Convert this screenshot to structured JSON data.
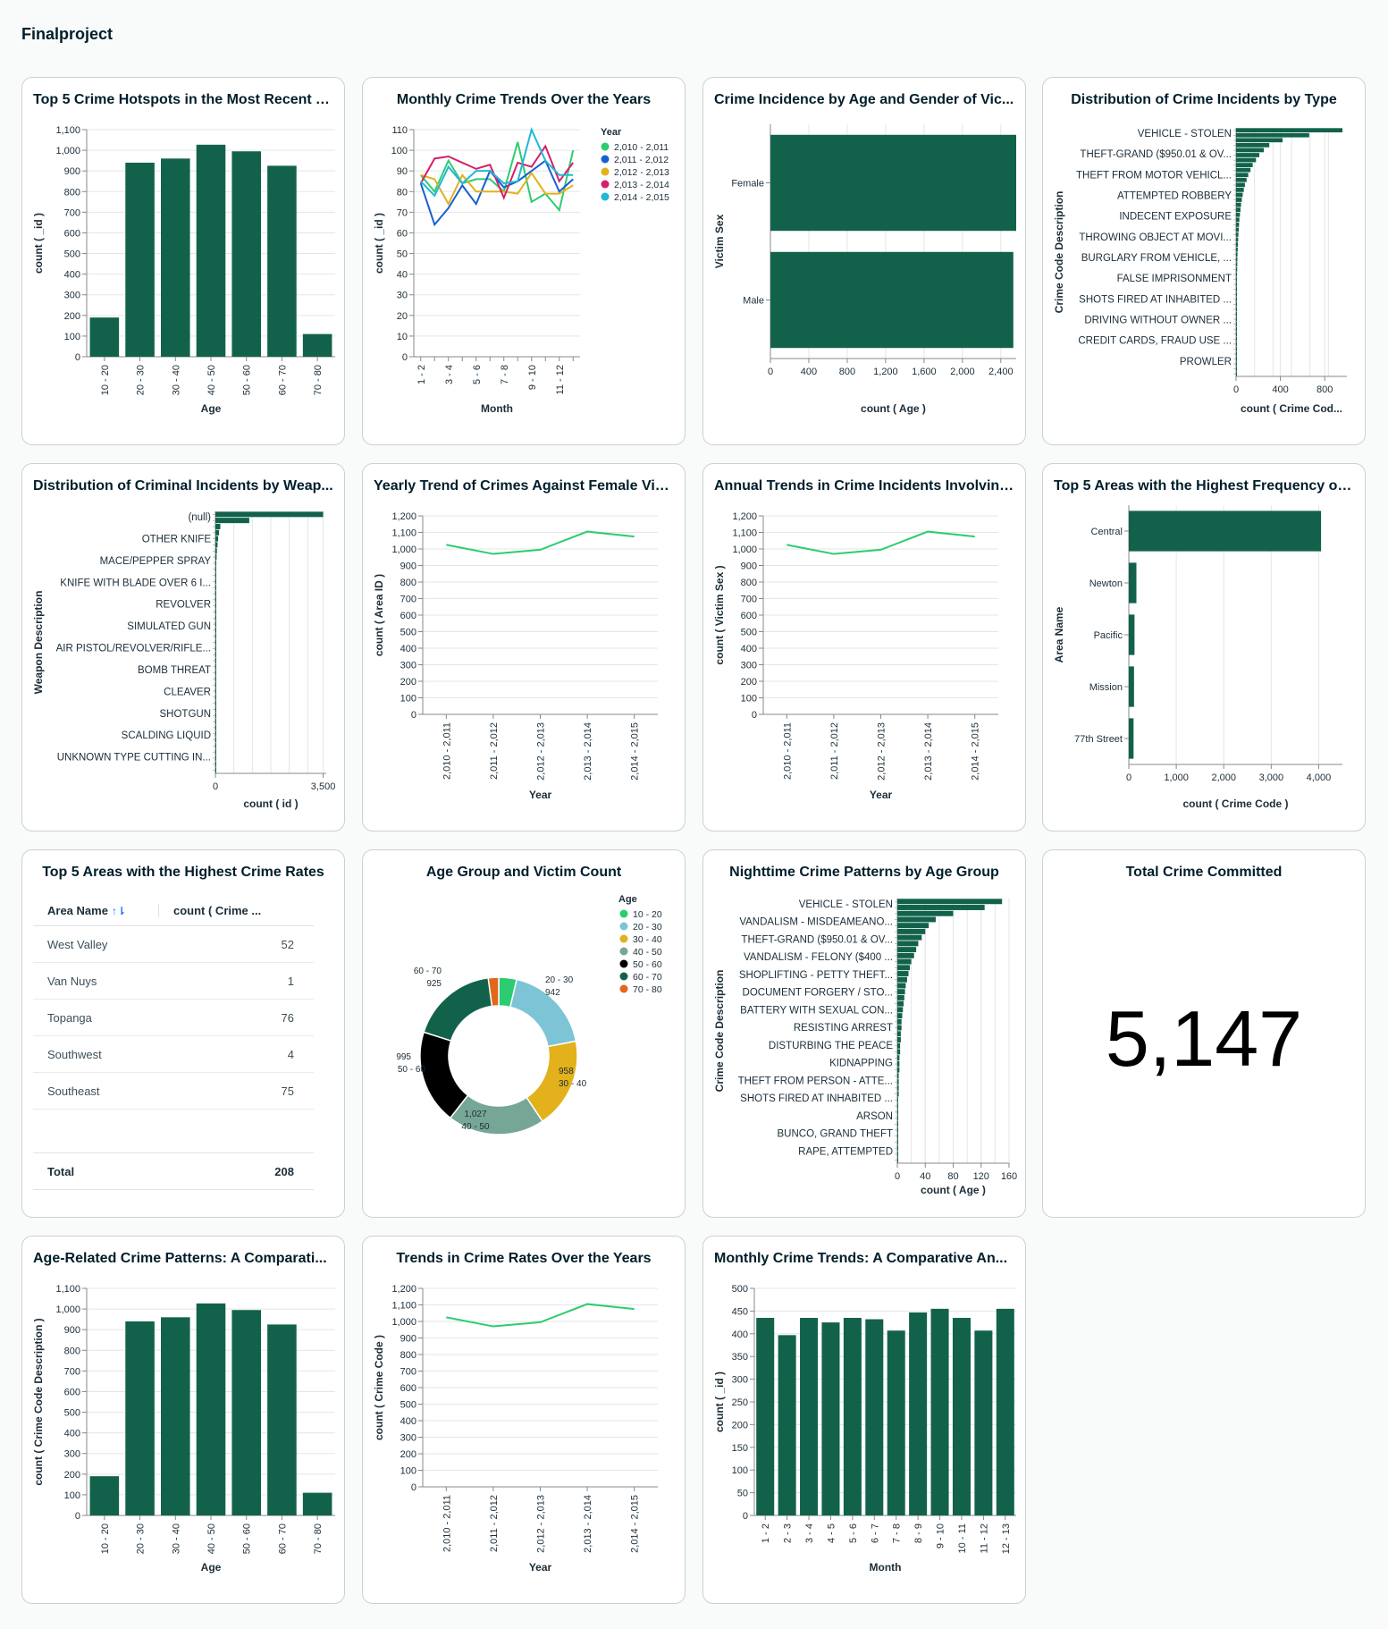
{
  "dashboard_title": "Finalproject",
  "colors": {
    "bar": "#12624b",
    "line": "#2ecc71",
    "grid": "#e3e6e8"
  },
  "charts": {
    "c1": {
      "title": "Top 5 Crime Hotspots in the Most Recent Y...",
      "type": "bar",
      "xlabel": "Age",
      "ylabel": "count ( _id )",
      "categories": [
        "10 - 20",
        "20 - 30",
        "30 - 40",
        "40 - 50",
        "50 - 60",
        "60 - 70",
        "70 - 80"
      ],
      "values": [
        190,
        940,
        960,
        1027,
        995,
        925,
        110
      ],
      "ylim": [
        0,
        1100
      ],
      "yticks": [
        0,
        100,
        200,
        300,
        400,
        500,
        600,
        700,
        800,
        900,
        1000,
        1100
      ],
      "ytick_labels": [
        "0",
        "100",
        "200",
        "300",
        "400",
        "500",
        "600",
        "700",
        "800",
        "900",
        "1,000",
        "1,100"
      ]
    },
    "c2": {
      "title": "Monthly Crime Trends Over the Years",
      "type": "line",
      "xlabel": "Month",
      "ylabel": "count ( _id )",
      "categories": [
        "1 - 2",
        "2 - 3",
        "3 - 4",
        "4 - 5",
        "5 - 6",
        "6 - 7",
        "7 - 8",
        "8 - 9",
        "9 - 10",
        "10 - 11",
        "11 - 12",
        "12 - 13"
      ],
      "xtick_labels": [
        "1 - 2",
        "",
        "3 - 4",
        "",
        "5 - 6",
        "",
        "7 - 8",
        "",
        "9 - 10",
        "",
        "11 - 12",
        ""
      ],
      "ylim": [
        0,
        110
      ],
      "yticks": [
        0,
        10,
        20,
        30,
        40,
        50,
        60,
        70,
        80,
        90,
        100,
        110
      ],
      "ytick_labels": [
        "0",
        "10",
        "20",
        "30",
        "40",
        "50",
        "60",
        "70",
        "80",
        "90",
        "100",
        "110"
      ],
      "legend_title": "Year",
      "series": [
        {
          "name": "2,010 - 2,011",
          "color": "#2ecc71",
          "values": [
            88,
            80,
            95,
            84,
            86,
            86,
            80,
            104,
            75,
            79,
            71,
            100
          ]
        },
        {
          "name": "2,011 - 2,012",
          "color": "#1a5fd0",
          "values": [
            84,
            64,
            72,
            83,
            74,
            90,
            82,
            85,
            90,
            95,
            80,
            86
          ]
        },
        {
          "name": "2,012 - 2,013",
          "color": "#e2b11b",
          "values": [
            88,
            86,
            74,
            88,
            80,
            80,
            80,
            79,
            89,
            79,
            79,
            83
          ]
        },
        {
          "name": "2,013 - 2,014",
          "color": "#d61f69",
          "values": [
            84,
            96,
            97,
            94,
            91,
            93,
            77,
            94,
            92,
            102,
            85,
            94
          ]
        },
        {
          "name": "2,014 - 2,015",
          "color": "#22b8d6",
          "values": [
            85,
            78,
            92,
            84,
            90,
            90,
            84,
            85,
            110,
            95,
            88,
            88
          ]
        }
      ]
    },
    "c3": {
      "title": "Crime Incidence by Age and Gender of Vic...",
      "type": "hbar",
      "xlabel": "count ( Age )",
      "ylabel": "Victim Sex",
      "categories": [
        "Female",
        "Male"
      ],
      "values": [
        2560,
        2530
      ],
      "xlim": [
        0,
        2560
      ],
      "xticks": [
        0,
        400,
        800,
        1200,
        1600,
        2000,
        2400
      ],
      "xtick_labels": [
        "0",
        "400",
        "800",
        "1,200",
        "1,600",
        "2,000",
        "2,400"
      ]
    },
    "c4": {
      "title": "Distribution of Crime Incidents by Type",
      "type": "hbar_dense",
      "xlabel": "count ( Crime Cod...",
      "ylabel": "Crime Code Description",
      "labels": [
        "VEHICLE - STOLEN",
        "THEFT-GRAND ($950.01 & OV...",
        "THEFT FROM MOTOR VEHICL...",
        "ATTEMPTED ROBBERY",
        "INDECENT EXPOSURE",
        "THROWING OBJECT AT MOVI...",
        "BURGLARY FROM VEHICLE, ...",
        "FALSE IMPRISONMENT",
        "SHOTS FIRED AT INHABITED ...",
        "DRIVING WITHOUT OWNER ...",
        "CREDIT CARDS, FRAUD USE ...",
        "PROWLER"
      ],
      "values": [
        960,
        660,
        420,
        300,
        250,
        210,
        180,
        150,
        130,
        110,
        95,
        80,
        70,
        60,
        52,
        45,
        40,
        35,
        30,
        27,
        24,
        21,
        19,
        17,
        15,
        13,
        12,
        11,
        10,
        9,
        8,
        7,
        7,
        6,
        6,
        5,
        5,
        4,
        4,
        3,
        3,
        3,
        2,
        2,
        2,
        1,
        1,
        1,
        1,
        1
      ],
      "xlim": [
        0,
        1000
      ],
      "xticks": [
        0,
        400,
        800
      ],
      "xtick_labels": [
        "0",
        "400",
        "800"
      ]
    },
    "c5": {
      "title": "Distribution of Criminal Incidents by Weap...",
      "type": "hbar_dense",
      "xlabel": "count (   id )",
      "ylabel": "Weapon Description",
      "labels": [
        "(null)",
        "OTHER KNIFE",
        "MACE/PEPPER SPRAY",
        "KNIFE WITH BLADE OVER 6 I...",
        "REVOLVER",
        "SIMULATED GUN",
        "AIR PISTOL/REVOLVER/RIFLE...",
        "BOMB THREAT",
        "CLEAVER",
        "SHOTGUN",
        "SCALDING LIQUID",
        "UNKNOWN TYPE CUTTING IN..."
      ],
      "values": [
        3500,
        1100,
        160,
        120,
        90,
        70,
        50,
        40,
        30,
        25,
        20,
        16,
        13,
        11,
        9,
        8,
        7,
        6,
        5,
        5,
        4,
        4,
        3,
        3,
        3,
        2,
        2,
        2,
        2,
        1,
        1,
        1,
        1,
        1,
        1,
        1,
        1,
        1,
        1,
        1,
        1,
        1,
        1
      ],
      "xlim": [
        0,
        3600
      ],
      "xticks": [
        0,
        3500
      ],
      "xtick_labels": [
        "0",
        "3,500"
      ]
    },
    "c6": {
      "title": "Yearly Trend of Crimes Against Female Vic...",
      "type": "line",
      "xlabel": "Year",
      "ylabel": "count ( Area ID )",
      "categories": [
        "2,010 - 2,011",
        "2,011 - 2,012",
        "2,012 - 2,013",
        "2,013 - 2,014",
        "2,014 - 2,015"
      ],
      "xtick_labels": [
        "2,010 - 2,011",
        "2,011 - 2,012",
        "2,012 - 2,013",
        "2,013 - 2,014",
        "2,014 - 2,015"
      ],
      "ylim": [
        0,
        1200
      ],
      "yticks": [
        0,
        100,
        200,
        300,
        400,
        500,
        600,
        700,
        800,
        900,
        1000,
        1100,
        1200
      ],
      "ytick_labels": [
        "0",
        "100",
        "200",
        "300",
        "400",
        "500",
        "600",
        "700",
        "800",
        "900",
        "1,000",
        "1,100",
        "1,200"
      ],
      "series": [
        {
          "name": "",
          "color": "#2ecc71",
          "values": [
            1025,
            970,
            995,
            1105,
            1075
          ]
        }
      ]
    },
    "c7": {
      "title": "Annual Trends in Crime Incidents Involving...",
      "type": "line",
      "xlabel": "Year",
      "ylabel": "count ( Victim Sex )",
      "categories": [
        "2,010 - 2,011",
        "2,011 - 2,012",
        "2,012 - 2,013",
        "2,013 - 2,014",
        "2,014 - 2,015"
      ],
      "xtick_labels": [
        "2,010 - 2,011",
        "2,011 - 2,012",
        "2,012 - 2,013",
        "2,013 - 2,014",
        "2,014 - 2,015"
      ],
      "ylim": [
        0,
        1200
      ],
      "yticks": [
        0,
        100,
        200,
        300,
        400,
        500,
        600,
        700,
        800,
        900,
        1000,
        1100,
        1200
      ],
      "ytick_labels": [
        "0",
        "100",
        "200",
        "300",
        "400",
        "500",
        "600",
        "700",
        "800",
        "900",
        "1,000",
        "1,100",
        "1,200"
      ],
      "series": [
        {
          "name": "",
          "color": "#2ecc71",
          "values": [
            1025,
            970,
            995,
            1105,
            1075
          ]
        }
      ]
    },
    "c8": {
      "title": "Top 5 Areas with the Highest Frequency of ...",
      "type": "hbar",
      "xlabel": "count ( Crime Code )",
      "ylabel": "Area Name",
      "categories": [
        "Central",
        "Newton",
        "Pacific",
        "Mission",
        "77th Street"
      ],
      "values": [
        4050,
        160,
        120,
        110,
        100
      ],
      "xlim": [
        0,
        4500
      ],
      "xticks": [
        0,
        1000,
        2000,
        3000,
        4000
      ],
      "xtick_labels": [
        "0",
        "1,000",
        "2,000",
        "3,000",
        "4,000"
      ]
    },
    "c10": {
      "title": "Age Group and Victim Count",
      "type": "pie",
      "legend_title": "Age",
      "slices": [
        {
          "label": "10 - 20",
          "value": 190,
          "color": "#2ecc71"
        },
        {
          "label": "20 - 30",
          "value": 942,
          "color": "#7cc4d6"
        },
        {
          "label": "30 - 40",
          "value": 958,
          "color": "#e2b11b"
        },
        {
          "label": "40 - 50",
          "value": 1027,
          "color": "#76a696"
        },
        {
          "label": "50 - 60",
          "value": 995,
          "color": "#000000"
        },
        {
          "label": "60 - 70",
          "value": 925,
          "color": "#12624b"
        },
        {
          "label": "70 - 80",
          "value": 110,
          "color": "#e2661b"
        }
      ],
      "slice_labels": [
        {
          "name": "20 - 30",
          "value": "942"
        },
        {
          "name": "30 - 40",
          "value": "958"
        },
        {
          "name": "40 - 50",
          "value": "1,027"
        },
        {
          "name": "50 - 60",
          "value": "995"
        },
        {
          "name": "60 - 70",
          "value": "925"
        }
      ]
    },
    "c11": {
      "title": "Nighttime Crime Patterns by Age Group",
      "type": "hbar_dense",
      "xlabel": "count ( Age )",
      "ylabel": "Crime Code Description",
      "labels": [
        "VEHICLE - STOLEN",
        "VANDALISM - MISDEAMEANO...",
        "THEFT-GRAND ($950.01 & OV...",
        "VANDALISM - FELONY ($400 ...",
        "SHOPLIFTING - PETTY THEFT...",
        "DOCUMENT FORGERY / STO...",
        "BATTERY WITH SEXUAL CON...",
        "RESISTING ARREST",
        "DISTURBING THE PEACE",
        "KIDNAPPING",
        "THEFT FROM PERSON - ATTE...",
        "SHOTS FIRED AT INHABITED ...",
        "ARSON",
        "BUNCO, GRAND THEFT",
        "RAPE, ATTEMPTED"
      ],
      "values": [
        150,
        125,
        80,
        55,
        45,
        40,
        35,
        30,
        27,
        24,
        20,
        18,
        16,
        14,
        12,
        11,
        10,
        9,
        8,
        7,
        6,
        6,
        5,
        5,
        4,
        4,
        3,
        3,
        3,
        2,
        2,
        2,
        2,
        1,
        1,
        1,
        1,
        1,
        1,
        1,
        1,
        1,
        1,
        1
      ],
      "xlim": [
        0,
        160
      ],
      "xticks": [
        0,
        40,
        80,
        120,
        160
      ],
      "xtick_labels": [
        "0",
        "40",
        "80",
        "120",
        "160"
      ]
    },
    "c13": {
      "title": "Age-Related Crime Patterns: A Comparati...",
      "type": "bar",
      "xlabel": "Age",
      "ylabel": "count ( Crime Code Description )",
      "categories": [
        "10 - 20",
        "20 - 30",
        "30 - 40",
        "40 - 50",
        "50 - 60",
        "60 - 70",
        "70 - 80"
      ],
      "values": [
        190,
        940,
        960,
        1027,
        995,
        925,
        110
      ],
      "ylim": [
        0,
        1100
      ],
      "yticks": [
        0,
        100,
        200,
        300,
        400,
        500,
        600,
        700,
        800,
        900,
        1000,
        1100
      ],
      "ytick_labels": [
        "0",
        "100",
        "200",
        "300",
        "400",
        "500",
        "600",
        "700",
        "800",
        "900",
        "1,000",
        "1,100"
      ]
    },
    "c14": {
      "title": "Trends in Crime Rates Over the Years",
      "type": "line",
      "xlabel": "Year",
      "ylabel": "count ( Crime Code )",
      "categories": [
        "2,010 - 2,011",
        "2,011 - 2,012",
        "2,012 - 2,013",
        "2,013 - 2,014",
        "2,014 - 2,015"
      ],
      "xtick_labels": [
        "2,010 - 2,011",
        "2,011 - 2,012",
        "2,012 - 2,013",
        "2,013 - 2,014",
        "2,014 - 2,015"
      ],
      "ylim": [
        0,
        1200
      ],
      "yticks": [
        0,
        100,
        200,
        300,
        400,
        500,
        600,
        700,
        800,
        900,
        1000,
        1100,
        1200
      ],
      "ytick_labels": [
        "0",
        "100",
        "200",
        "300",
        "400",
        "500",
        "600",
        "700",
        "800",
        "900",
        "1,000",
        "1,100",
        "1,200"
      ],
      "series": [
        {
          "name": "",
          "color": "#2ecc71",
          "values": [
            1025,
            970,
            995,
            1105,
            1075
          ]
        }
      ]
    },
    "c15": {
      "title": "Monthly Crime Trends: A Comparative An...",
      "type": "bar",
      "xlabel": "Month",
      "ylabel": "count ( _id )",
      "categories": [
        "1 - 2",
        "2 - 3",
        "3 - 4",
        "4 - 5",
        "5 - 6",
        "6 - 7",
        "7 - 8",
        "8 - 9",
        "9 - 10",
        "10 - 11",
        "11 - 12",
        "12 - 13"
      ],
      "values": [
        435,
        397,
        435,
        425,
        435,
        432,
        407,
        447,
        455,
        435,
        407,
        455
      ],
      "ylim": [
        0,
        500
      ],
      "yticks": [
        0,
        50,
        100,
        150,
        200,
        250,
        300,
        350,
        400,
        450,
        500
      ],
      "ytick_labels": [
        "0",
        "50",
        "100",
        "150",
        "200",
        "250",
        "300",
        "350",
        "400",
        "450",
        "500"
      ]
    }
  },
  "chart_data": [
    {
      "type": "bar",
      "title": "Top 5 Crime Hotspots in the Most Recent Y...",
      "categories": [
        "10 - 20",
        "20 - 30",
        "30 - 40",
        "40 - 50",
        "50 - 60",
        "60 - 70",
        "70 - 80"
      ],
      "values": [
        190,
        940,
        960,
        1027,
        995,
        925,
        110
      ],
      "xlabel": "Age",
      "ylabel": "count ( _id )",
      "ylim": [
        0,
        1100
      ]
    },
    {
      "type": "line",
      "title": "Monthly Crime Trends Over the Years",
      "xlabel": "Month",
      "ylabel": "count ( _id )",
      "ylim": [
        0,
        110
      ]
    },
    {
      "type": "bar",
      "title": "Crime Incidence by Age and Gender of Vic...",
      "categories": [
        "Female",
        "Male"
      ],
      "values": [
        2560,
        2530
      ]
    },
    {
      "type": "bar",
      "title": "Distribution of Crime Incidents by Type"
    },
    {
      "type": "bar",
      "title": "Distribution of Criminal Incidents by Weap..."
    },
    {
      "type": "line",
      "title": "Yearly Trend of Crimes Against Female Vic...",
      "values": [
        1025,
        970,
        995,
        1105,
        1075
      ]
    },
    {
      "type": "line",
      "title": "Annual Trends in Crime Incidents Involving...",
      "values": [
        1025,
        970,
        995,
        1105,
        1075
      ]
    },
    {
      "type": "bar",
      "title": "Top 5 Areas with the Highest Frequency of ...",
      "categories": [
        "Central",
        "Newton",
        "Pacific",
        "Mission",
        "77th Street"
      ],
      "values": [
        4050,
        160,
        120,
        110,
        100
      ]
    },
    {
      "type": "table",
      "title": "Top 5 Areas with the Highest Crime Rates"
    },
    {
      "type": "pie",
      "title": "Age Group and Victim Count",
      "categories": [
        "10 - 20",
        "20 - 30",
        "30 - 40",
        "40 - 50",
        "50 - 60",
        "60 - 70",
        "70 - 80"
      ],
      "values": [
        190,
        942,
        958,
        1027,
        995,
        925,
        110
      ]
    },
    {
      "type": "bar",
      "title": "Nighttime Crime Patterns by Age Group"
    },
    {
      "type": "bar",
      "title": "Age-Related Crime Patterns: A Comparati...",
      "values": [
        190,
        940,
        960,
        1027,
        995,
        925,
        110
      ]
    },
    {
      "type": "line",
      "title": "Trends in Crime Rates Over the Years",
      "values": [
        1025,
        970,
        995,
        1105,
        1075
      ]
    },
    {
      "type": "bar",
      "title": "Monthly Crime Trends: A Comparative An...",
      "values": [
        435,
        397,
        435,
        425,
        435,
        432,
        407,
        447,
        455,
        435,
        407,
        455
      ]
    }
  ],
  "table": {
    "title": "Top 5 Areas with the Highest Crime Rates",
    "col1": "Area Name",
    "sort_icon": "↑⇂",
    "col2": "count ( Crime ...",
    "rows": [
      {
        "name": "West Valley",
        "value": "52"
      },
      {
        "name": "Van Nuys",
        "value": "1"
      },
      {
        "name": "Topanga",
        "value": "76"
      },
      {
        "name": "Southwest",
        "value": "4"
      },
      {
        "name": "Southeast",
        "value": "75"
      }
    ],
    "total_label": "Total",
    "total_value": "208"
  },
  "kpi": {
    "title": "Total Crime Committed",
    "value": "5,147"
  }
}
